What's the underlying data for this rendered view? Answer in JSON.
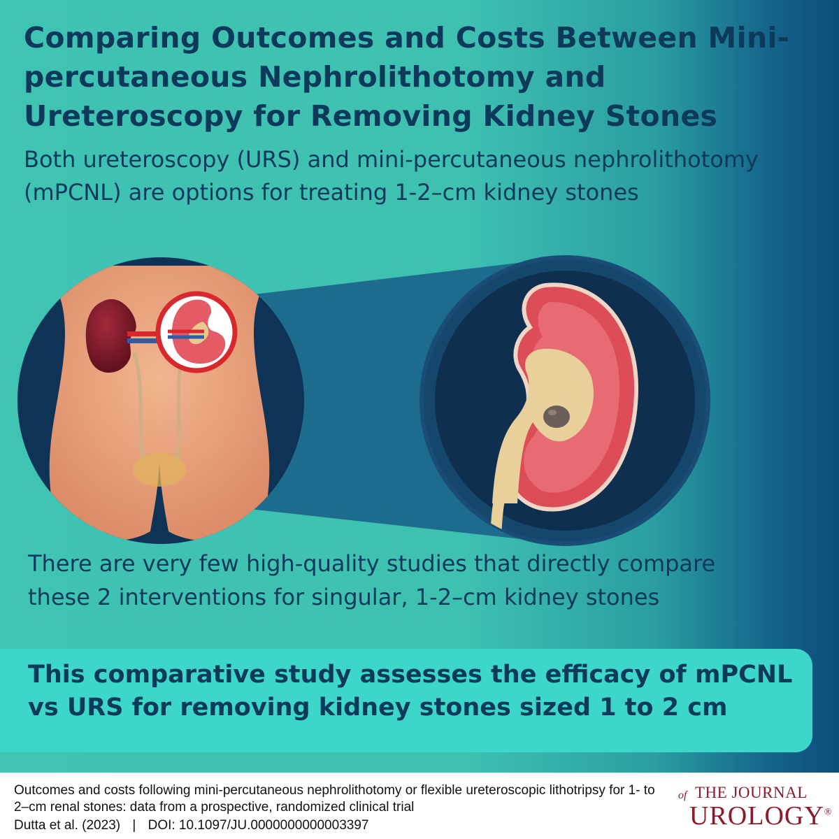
{
  "poster": {
    "title": "Comparing Outcomes and Costs Between Mini-percutaneous Nephrolithotomy and Ureteroscopy for Removing Kidney Stones",
    "intro": "Both ureteroscopy (URS) and mini-percutaneous nephrolithotomy (mPCNL) are options for treating 1-2–cm kidney stones",
    "findings": "There are very few high-quality studies that directly compare these 2 interventions for singular, 1-2–cm kidney stones",
    "aim": "This comparative study assesses the efficacy of mPCNL vs URS for removing kidney stones sized 1 to 2 cm"
  },
  "illustration": {
    "left_panel": "torso-with-kidneys-illustration",
    "right_panel": "kidney-cross-section-with-stone-illustration",
    "colors": {
      "background_teal": "#3fc3b3",
      "navy": "#0f3356",
      "skin": "#e8a07a",
      "kidney_dark": "#7a1626",
      "kidney_red": "#dd4d57",
      "highlight_circle": "#d9272e"
    }
  },
  "footer": {
    "citation_title": "Outcomes and costs following mini-percutaneous nephrolithotomy or flexible ureteroscopic lithotripsy for 1- to 2–cm renal stones: data from a prospective, randomized clinical trial",
    "authors": "Dutta et al. (2023)",
    "separator": "|",
    "doi": "DOI: 10.1097/JU.0000000000003397",
    "journal": {
      "of": "of",
      "the_journal": "THE JOURNAL",
      "urology": "UROLOGY",
      "registered": "®"
    }
  }
}
